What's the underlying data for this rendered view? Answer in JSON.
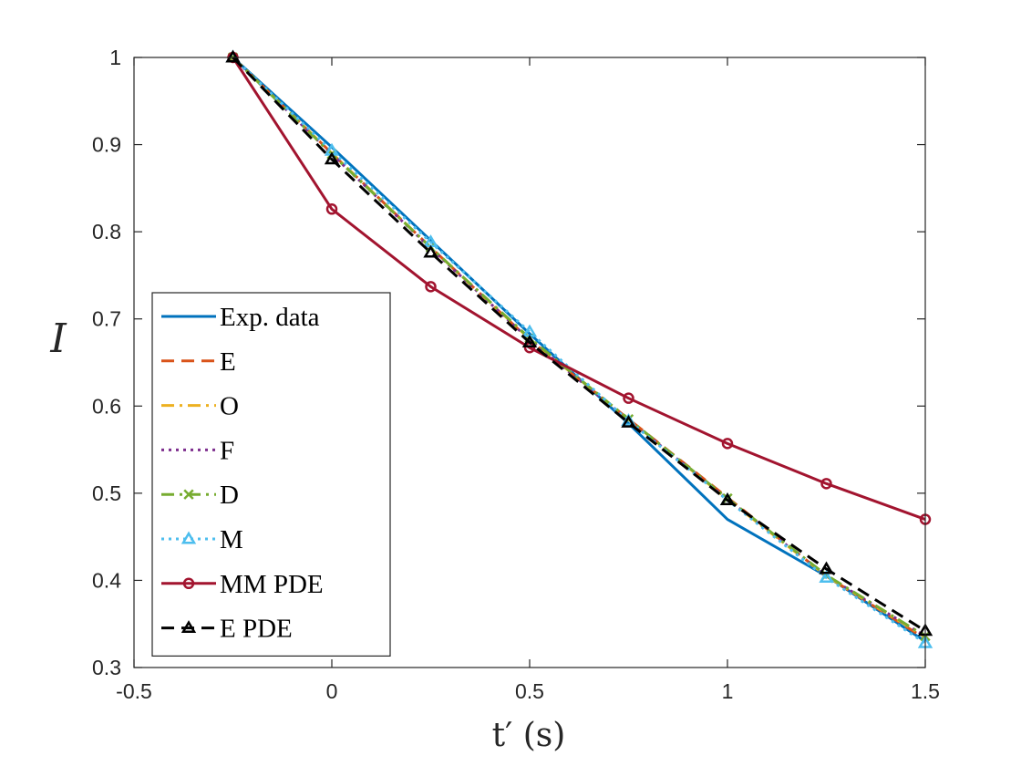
{
  "chart_data": {
    "type": "line",
    "title": "",
    "xlabel": "t′ (s)",
    "ylabel": "I",
    "xlim": [
      -0.5,
      1.5
    ],
    "ylim": [
      0.3,
      1.0
    ],
    "xticks": [
      -0.5,
      0,
      0.5,
      1,
      1.5
    ],
    "xtick_labels": [
      "-0.5",
      "0",
      "0.5",
      "1",
      "1.5"
    ],
    "yticks": [
      0.3,
      0.4,
      0.5,
      0.6,
      0.7,
      0.8,
      0.9,
      1.0
    ],
    "ytick_labels": [
      "0.3",
      "0.4",
      "0.5",
      "0.6",
      "0.7",
      "0.8",
      "0.9",
      "1"
    ],
    "grid": false,
    "legend_position": "bottom-left",
    "x": [
      -0.25,
      0,
      0.25,
      0.5,
      0.75,
      1.0,
      1.25,
      1.5
    ],
    "series": [
      {
        "name": "Exp. data",
        "color": "#0072BD",
        "dash": "solid",
        "marker": "none",
        "values": [
          1.0,
          0.897,
          0.79,
          0.683,
          0.58,
          0.47,
          0.405,
          0.33
        ]
      },
      {
        "name": "E",
        "color": "#D95319",
        "dash": "dashed",
        "marker": "none",
        "values": [
          1.0,
          0.89,
          0.782,
          0.676,
          0.585,
          0.495,
          0.405,
          0.333
        ]
      },
      {
        "name": "O",
        "color": "#EDB120",
        "dash": "dashdot",
        "marker": "none",
        "values": [
          1.0,
          0.89,
          0.782,
          0.677,
          0.585,
          0.493,
          0.405,
          0.335
        ]
      },
      {
        "name": "F",
        "color": "#7E2F8E",
        "dash": "dotted",
        "marker": "none",
        "values": [
          1.0,
          0.889,
          0.781,
          0.676,
          0.584,
          0.493,
          0.405,
          0.336
        ]
      },
      {
        "name": "D",
        "color": "#77AC30",
        "dash": "dashdot",
        "marker": "x",
        "values": [
          1.0,
          0.889,
          0.782,
          0.678,
          0.585,
          0.494,
          0.406,
          0.336
        ]
      },
      {
        "name": "M",
        "color": "#4DBEEE",
        "dash": "dotted",
        "marker": "triangle",
        "values": [
          1.0,
          0.893,
          0.788,
          0.685,
          0.583,
          0.492,
          0.403,
          0.328
        ]
      },
      {
        "name": "MM PDE",
        "color": "#A2142F",
        "dash": "solid",
        "marker": "circle",
        "values": [
          1.0,
          0.826,
          0.737,
          0.667,
          0.609,
          0.557,
          0.511,
          0.47
        ]
      },
      {
        "name": "E PDE",
        "color": "#000000",
        "dash": "dashed",
        "marker": "triangle",
        "values": [
          1.0,
          0.883,
          0.776,
          0.673,
          0.581,
          0.492,
          0.413,
          0.342
        ]
      }
    ]
  }
}
